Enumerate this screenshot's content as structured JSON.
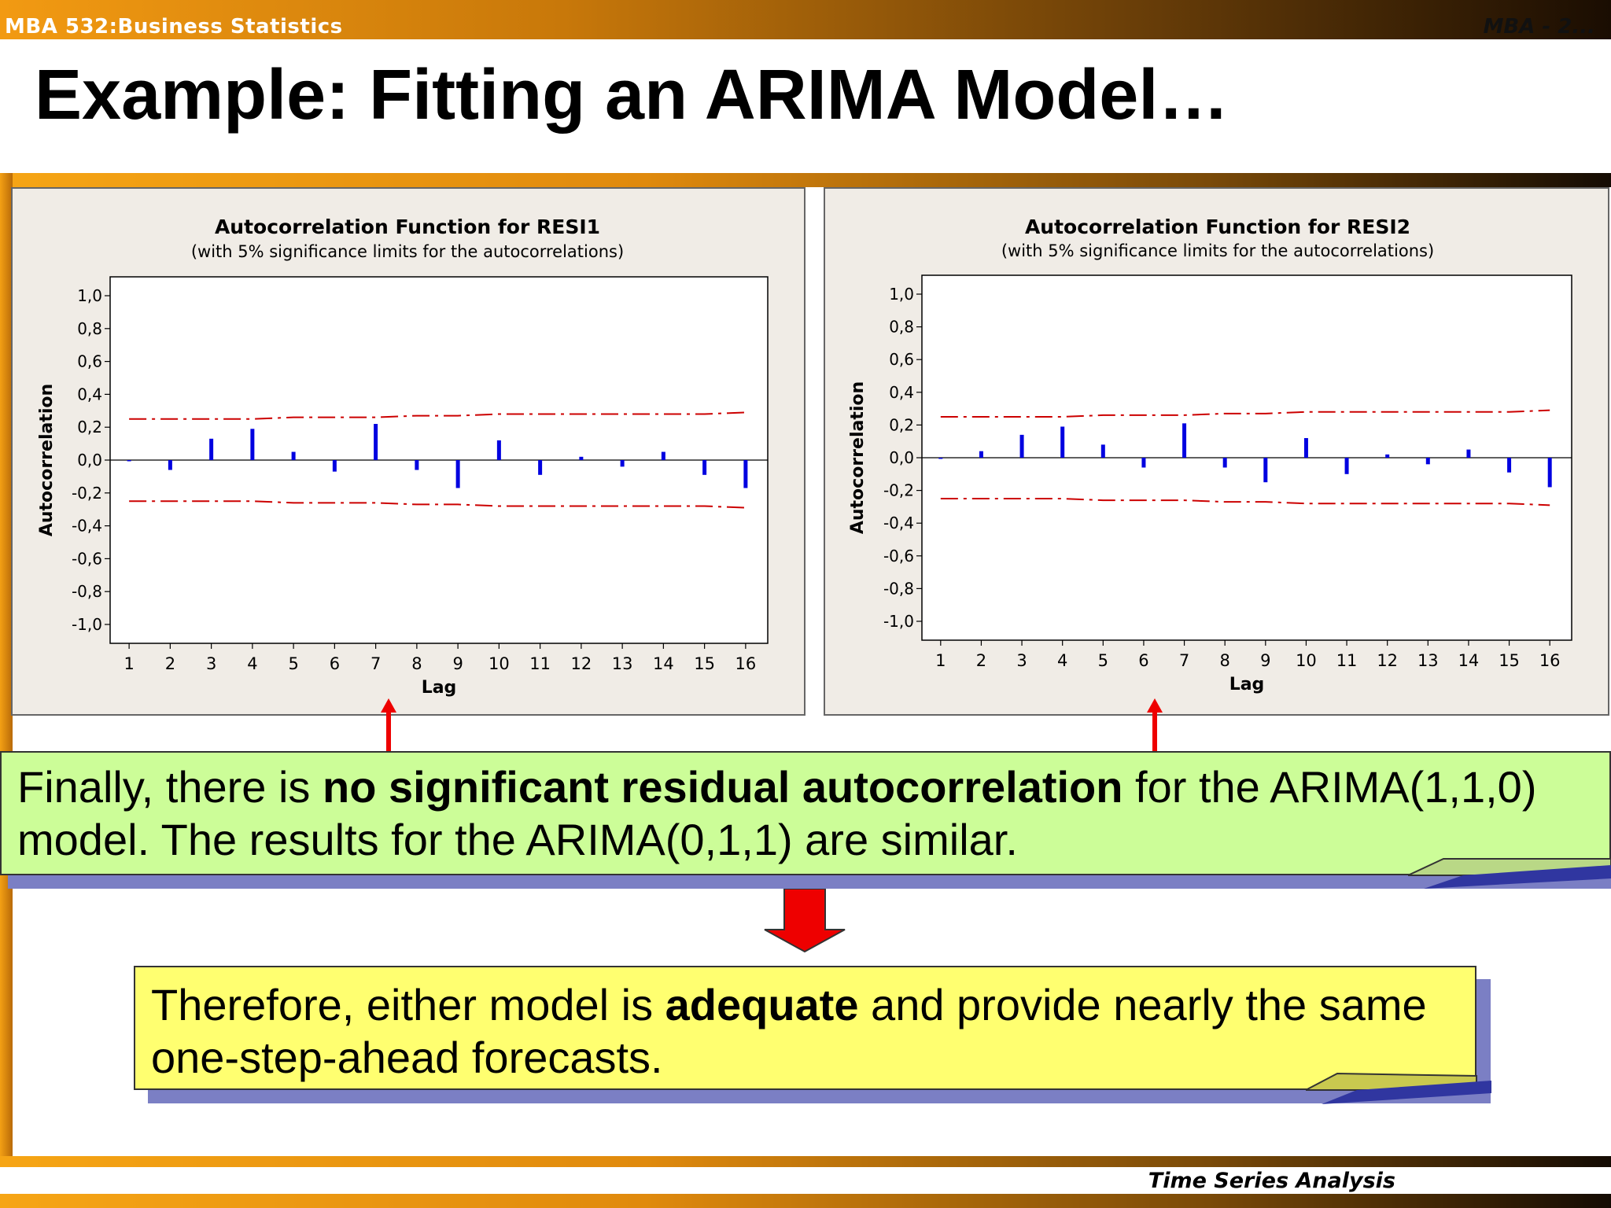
{
  "header": {
    "course": "MBA 532:Business Statistics",
    "corner_text": "MBA - 2..."
  },
  "slide": {
    "title": "Example: Fitting an ARIMA Model…",
    "footer": "Time Series Analysis"
  },
  "green_box": {
    "part1": "Finally, there is ",
    "bold": "no significant residual autocorrelation",
    "part2": " for the ARIMA(1,1,0) model. The results for the ARIMA(0,1,1) are similar."
  },
  "yellow_box": {
    "part1": "Therefore, either model is ",
    "bold": "adequate",
    "part2": " and provide nearly the same one-step-ahead forecasts."
  },
  "colors": {
    "bar": "#0000e0",
    "limit": "#cc0000",
    "green_box": "#ccfd98",
    "yellow_box": "#ffff70",
    "shadow": "#7b7fc4",
    "arrow": "#ee0000"
  },
  "chart_data": [
    {
      "type": "bar",
      "title": "Autocorrelation Function for RESI1",
      "subtitle": "(with 5% significance limits for the autocorrelations)",
      "xlabel": "Lag",
      "ylabel": "Autocorrelation",
      "categories": [
        1,
        2,
        3,
        4,
        5,
        6,
        7,
        8,
        9,
        10,
        11,
        12,
        13,
        14,
        15,
        16
      ],
      "values": [
        0.0,
        -0.06,
        0.13,
        0.19,
        0.05,
        -0.07,
        0.22,
        -0.06,
        -0.17,
        0.12,
        -0.09,
        0.02,
        -0.04,
        0.05,
        -0.09,
        -0.17
      ],
      "upper_limit": [
        0.25,
        0.25,
        0.25,
        0.25,
        0.26,
        0.26,
        0.26,
        0.27,
        0.27,
        0.28,
        0.28,
        0.28,
        0.28,
        0.28,
        0.28,
        0.29
      ],
      "lower_limit": [
        -0.25,
        -0.25,
        -0.25,
        -0.25,
        -0.26,
        -0.26,
        -0.26,
        -0.27,
        -0.27,
        -0.28,
        -0.28,
        -0.28,
        -0.28,
        -0.28,
        -0.28,
        -0.29
      ],
      "ylim": [
        -1.0,
        1.0
      ],
      "yticks": [
        "1,0",
        "0,8",
        "0,6",
        "0,4",
        "0,2",
        "0,0",
        "-0,2",
        "-0,4",
        "-0,6",
        "-0,8",
        "-1,0"
      ],
      "xticks": [
        "1",
        "2",
        "3",
        "4",
        "5",
        "6",
        "7",
        "8",
        "9",
        "10",
        "11",
        "12",
        "13",
        "14",
        "15",
        "16"
      ],
      "grid": false
    },
    {
      "type": "bar",
      "title": "Autocorrelation Function for RESI2",
      "subtitle": "(with 5% significance limits for the autocorrelations)",
      "xlabel": "Lag",
      "ylabel": "Autocorrelation",
      "categories": [
        1,
        2,
        3,
        4,
        5,
        6,
        7,
        8,
        9,
        10,
        11,
        12,
        13,
        14,
        15,
        16
      ],
      "values": [
        0.0,
        0.04,
        0.14,
        0.19,
        0.08,
        -0.06,
        0.21,
        -0.06,
        -0.15,
        0.12,
        -0.1,
        0.02,
        -0.04,
        0.05,
        -0.09,
        -0.18
      ],
      "upper_limit": [
        0.25,
        0.25,
        0.25,
        0.25,
        0.26,
        0.26,
        0.26,
        0.27,
        0.27,
        0.28,
        0.28,
        0.28,
        0.28,
        0.28,
        0.28,
        0.29
      ],
      "lower_limit": [
        -0.25,
        -0.25,
        -0.25,
        -0.25,
        -0.26,
        -0.26,
        -0.26,
        -0.27,
        -0.27,
        -0.28,
        -0.28,
        -0.28,
        -0.28,
        -0.28,
        -0.28,
        -0.29
      ],
      "ylim": [
        -1.0,
        1.0
      ],
      "yticks": [
        "1,0",
        "0,8",
        "0,6",
        "0,4",
        "0,2",
        "0,0",
        "-0,2",
        "-0,4",
        "-0,6",
        "-0,8",
        "-1,0"
      ],
      "xticks": [
        "1",
        "2",
        "3",
        "4",
        "5",
        "6",
        "7",
        "8",
        "9",
        "10",
        "11",
        "12",
        "13",
        "14",
        "15",
        "16"
      ],
      "grid": false
    }
  ]
}
